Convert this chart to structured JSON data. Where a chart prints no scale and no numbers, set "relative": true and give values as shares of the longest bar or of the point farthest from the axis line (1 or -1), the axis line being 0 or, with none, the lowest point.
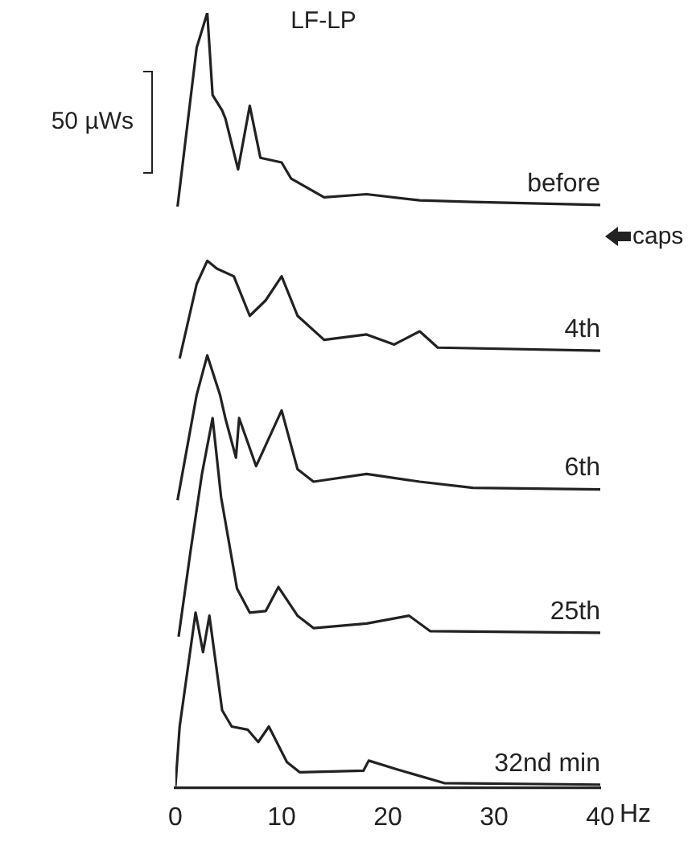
{
  "chart_data": {
    "type": "line",
    "title": "LF-LP",
    "xlabel": "Hz",
    "relative": true,
    "xlim": [
      0,
      40
    ],
    "xticks": [
      0,
      10,
      20,
      30,
      40
    ],
    "grid": false,
    "legend": false,
    "marker": "none",
    "line_style": "solid",
    "annotations": [
      "50 µWs",
      "caps"
    ],
    "series": [
      {
        "name": "before",
        "color": "#222222",
        "x": [
          0.2,
          2,
          3,
          3.5,
          4.4,
          4.7,
          5.9,
          7,
          8,
          10,
          10.9,
          14,
          18,
          23,
          28,
          40
        ],
        "values": [
          0.75,
          0.955,
          1.0,
          0.894,
          0.874,
          0.864,
          0.798,
          0.88,
          0.813,
          0.807,
          0.786,
          0.762,
          0.766,
          0.758,
          0.756,
          0.752
        ]
      },
      {
        "name": "4th",
        "color": "#222222",
        "x": [
          0.4,
          2,
          3,
          3.9,
          5.5,
          7,
          8.5,
          10,
          11.5,
          14,
          18,
          20.6,
          23,
          24.7,
          40
        ],
        "values": [
          0.554,
          0.65,
          0.68,
          0.67,
          0.66,
          0.609,
          0.629,
          0.66,
          0.609,
          0.578,
          0.585,
          0.572,
          0.589,
          0.568,
          0.564
        ]
      },
      {
        "name": "6th",
        "color": "#222222",
        "x": [
          0.2,
          2,
          3,
          4.2,
          4.7,
          5.7,
          6,
          7.6,
          10,
          11.5,
          13,
          18,
          23,
          28,
          40
        ],
        "values": [
          0.371,
          0.507,
          0.558,
          0.507,
          0.477,
          0.426,
          0.477,
          0.415,
          0.487,
          0.411,
          0.395,
          0.405,
          0.395,
          0.387,
          0.385
        ]
      },
      {
        "name": "25th",
        "color": "#222222",
        "x": [
          0.3,
          1.4,
          2.5,
          3.5,
          4.3,
          5.8,
          7,
          8.5,
          9.7,
          11.5,
          13,
          18,
          22,
          24,
          40
        ],
        "values": [
          0.195,
          0.303,
          0.405,
          0.477,
          0.375,
          0.257,
          0.226,
          0.228,
          0.259,
          0.222,
          0.206,
          0.212,
          0.222,
          0.202,
          0.2
        ]
      },
      {
        "name": "32nd min",
        "color": "#222222",
        "x": [
          0,
          0.4,
          1.9,
          2.6,
          3.2,
          4.4,
          5.3,
          6.8,
          7.8,
          8.8,
          10.5,
          11.7,
          17.7,
          18.2,
          20.8,
          25.3,
          40
        ],
        "values": [
          0.002,
          0.079,
          0.226,
          0.175,
          0.222,
          0.1,
          0.079,
          0.075,
          0.059,
          0.079,
          0.033,
          0.02,
          0.022,
          0.035,
          0.024,
          0.006,
          0.004
        ]
      }
    ]
  }
}
